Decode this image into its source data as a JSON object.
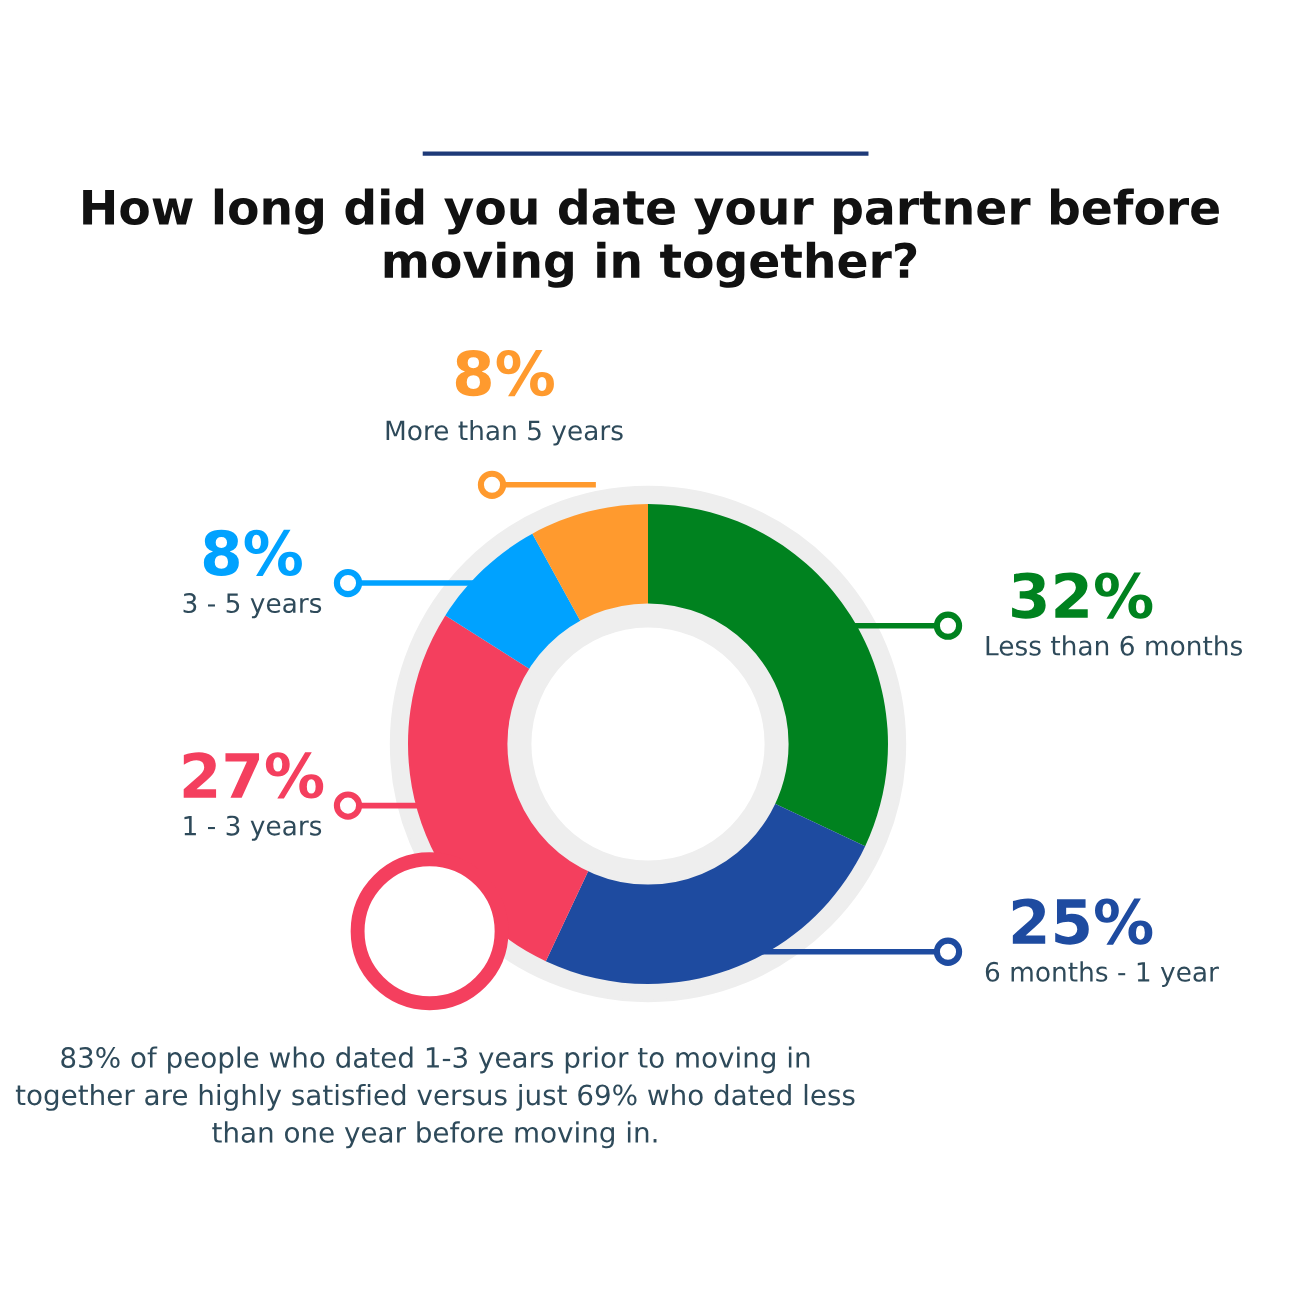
{
  "chart_data": {
    "type": "donut",
    "title": "How long did you date your partner before moving in together?",
    "categories": [
      "Less than 6 months",
      "6 months - 1 year",
      "1 - 3 years",
      "3 - 5 years",
      "More than 5 years"
    ],
    "values": [
      32,
      25,
      27,
      8,
      8
    ],
    "colors": [
      "#00821f",
      "#1e4ba0",
      "#f43f5e",
      "#00a2ff",
      "#ff9a2e"
    ],
    "value_labels": [
      "32%",
      "25%",
      "27%",
      "8%",
      "8%"
    ],
    "annotations": [
      "83% of people who dated 1-3 years prior to moving in together are highly satisfied versus just 69% who dated less than one year before moving in."
    ]
  }
}
